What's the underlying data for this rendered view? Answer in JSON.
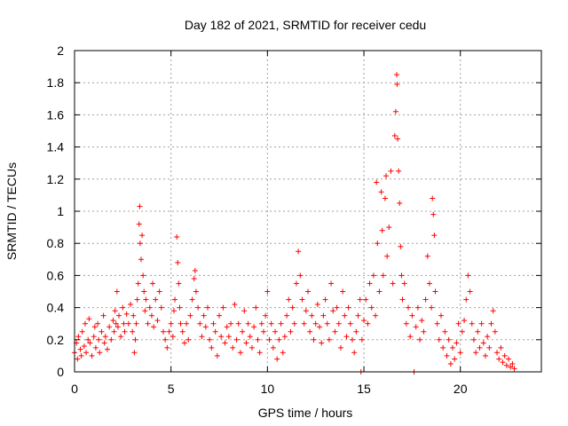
{
  "chart_data": {
    "type": "scatter",
    "title": "Day 182 of 2021, SRMTID for receiver cedu",
    "xlabel": "GPS time / hours",
    "ylabel": "SRMTID / TECUs",
    "xlim": [
      0,
      24.2
    ],
    "ylim": [
      0,
      2
    ],
    "xticks": [
      0,
      5,
      10,
      15,
      20
    ],
    "xtick_labels": [
      "0",
      "5",
      "10",
      "15",
      "20"
    ],
    "yticks": [
      0,
      0.2,
      0.4,
      0.6,
      0.8,
      1,
      1.2,
      1.4,
      1.6,
      1.8,
      2
    ],
    "ytick_labels": [
      "0",
      "0.2",
      "0.4",
      "0.6",
      "0.8",
      "1",
      "1.2",
      "1.4",
      "1.6",
      "1.8",
      "2"
    ],
    "grid": true,
    "marker": "plus",
    "color": "#ff0000",
    "series": [
      {
        "name": "SRMTID",
        "points": [
          [
            0.0,
            0.12
          ],
          [
            0.1,
            0.18
          ],
          [
            0.15,
            0.08
          ],
          [
            0.2,
            0.22
          ],
          [
            0.3,
            0.14
          ],
          [
            0.35,
            0.1
          ],
          [
            0.4,
            0.25
          ],
          [
            0.5,
            0.16
          ],
          [
            0.55,
            0.3
          ],
          [
            0.6,
            0.12
          ],
          [
            0.7,
            0.2
          ],
          [
            0.75,
            0.33
          ],
          [
            0.8,
            0.18
          ],
          [
            0.9,
            0.1
          ],
          [
            1.0,
            0.22
          ],
          [
            1.05,
            0.28
          ],
          [
            1.1,
            0.15
          ],
          [
            1.2,
            0.3
          ],
          [
            1.25,
            0.2
          ],
          [
            1.3,
            0.12
          ],
          [
            1.4,
            0.25
          ],
          [
            1.5,
            0.35
          ],
          [
            1.55,
            0.18
          ],
          [
            1.6,
            0.22
          ],
          [
            1.7,
            0.14
          ],
          [
            1.8,
            0.28
          ],
          [
            1.9,
            0.2
          ],
          [
            2.0,
            0.32
          ],
          [
            2.05,
            0.25
          ],
          [
            2.1,
            0.38
          ],
          [
            2.15,
            0.3
          ],
          [
            2.2,
            0.5
          ],
          [
            2.25,
            0.28
          ],
          [
            2.3,
            0.35
          ],
          [
            2.4,
            0.22
          ],
          [
            2.5,
            0.4
          ],
          [
            2.55,
            0.3
          ],
          [
            2.6,
            0.25
          ],
          [
            2.7,
            0.36
          ],
          [
            2.8,
            0.3
          ],
          [
            2.9,
            0.42
          ],
          [
            3.0,
            0.25
          ],
          [
            3.05,
            0.35
          ],
          [
            3.1,
            0.12
          ],
          [
            3.15,
            0.2
          ],
          [
            3.2,
            0.3
          ],
          [
            3.25,
            0.45
          ],
          [
            3.3,
            0.55
          ],
          [
            3.35,
            0.92
          ],
          [
            3.38,
            1.03
          ],
          [
            3.4,
            0.8
          ],
          [
            3.45,
            0.7
          ],
          [
            3.5,
            0.85
          ],
          [
            3.55,
            0.6
          ],
          [
            3.6,
            0.5
          ],
          [
            3.65,
            0.38
          ],
          [
            3.7,
            0.45
          ],
          [
            3.8,
            0.3
          ],
          [
            3.9,
            0.4
          ],
          [
            4.0,
            0.35
          ],
          [
            4.05,
            0.55
          ],
          [
            4.1,
            0.28
          ],
          [
            4.2,
            0.45
          ],
          [
            4.3,
            0.32
          ],
          [
            4.4,
            0.5
          ],
          [
            4.5,
            0.4
          ],
          [
            4.6,
            0.25
          ],
          [
            4.7,
            0.2
          ],
          [
            4.8,
            0.15
          ],
          [
            4.9,
            0.25
          ],
          [
            5.0,
            0.3
          ],
          [
            5.1,
            0.22
          ],
          [
            5.15,
            0.38
          ],
          [
            5.2,
            0.45
          ],
          [
            5.3,
            0.84
          ],
          [
            5.35,
            0.68
          ],
          [
            5.4,
            0.55
          ],
          [
            5.45,
            0.4
          ],
          [
            5.5,
            0.3
          ],
          [
            5.6,
            0.25
          ],
          [
            5.7,
            0.18
          ],
          [
            5.8,
            0.3
          ],
          [
            5.9,
            0.2
          ],
          [
            6.0,
            0.35
          ],
          [
            6.1,
            0.45
          ],
          [
            6.2,
            0.58
          ],
          [
            6.25,
            0.63
          ],
          [
            6.3,
            0.5
          ],
          [
            6.4,
            0.4
          ],
          [
            6.5,
            0.3
          ],
          [
            6.6,
            0.22
          ],
          [
            6.7,
            0.35
          ],
          [
            6.8,
            0.28
          ],
          [
            6.9,
            0.4
          ],
          [
            7.0,
            0.2
          ],
          [
            7.1,
            0.15
          ],
          [
            7.2,
            0.3
          ],
          [
            7.3,
            0.25
          ],
          [
            7.4,
            0.1
          ],
          [
            7.5,
            0.35
          ],
          [
            7.6,
            0.22
          ],
          [
            7.7,
            0.4
          ],
          [
            7.8,
            0.18
          ],
          [
            7.9,
            0.28
          ],
          [
            8.0,
            0.22
          ],
          [
            8.1,
            0.3
          ],
          [
            8.2,
            0.15
          ],
          [
            8.3,
            0.42
          ],
          [
            8.4,
            0.2
          ],
          [
            8.5,
            0.3
          ],
          [
            8.6,
            0.12
          ],
          [
            8.7,
            0.25
          ],
          [
            8.8,
            0.38
          ],
          [
            8.9,
            0.18
          ],
          [
            9.0,
            0.3
          ],
          [
            9.1,
            0.22
          ],
          [
            9.2,
            0.15
          ],
          [
            9.3,
            0.28
          ],
          [
            9.4,
            0.4
          ],
          [
            9.5,
            0.2
          ],
          [
            9.6,
            0.12
          ],
          [
            9.7,
            0.3
          ],
          [
            9.8,
            0.25
          ],
          [
            9.9,
            0.35
          ],
          [
            10.0,
            0.5
          ],
          [
            10.1,
            0.2
          ],
          [
            10.2,
            0.3
          ],
          [
            10.3,
            0.15
          ],
          [
            10.4,
            0.25
          ],
          [
            10.5,
            0.08
          ],
          [
            10.6,
            0.2
          ],
          [
            10.7,
            0.3
          ],
          [
            10.8,
            0.12
          ],
          [
            10.9,
            0.22
          ],
          [
            11.0,
            0.35
          ],
          [
            11.1,
            0.45
          ],
          [
            11.2,
            0.25
          ],
          [
            11.3,
            0.4
          ],
          [
            11.4,
            0.3
          ],
          [
            11.5,
            0.55
          ],
          [
            11.6,
            0.75
          ],
          [
            11.7,
            0.6
          ],
          [
            11.8,
            0.45
          ],
          [
            11.9,
            0.3
          ],
          [
            12.0,
            0.38
          ],
          [
            12.1,
            0.5
          ],
          [
            12.2,
            0.25
          ],
          [
            12.3,
            0.35
          ],
          [
            12.4,
            0.2
          ],
          [
            12.5,
            0.3
          ],
          [
            12.6,
            0.42
          ],
          [
            12.7,
            0.28
          ],
          [
            12.8,
            0.18
          ],
          [
            12.9,
            0.35
          ],
          [
            13.0,
            0.45
          ],
          [
            13.1,
            0.3
          ],
          [
            13.2,
            0.2
          ],
          [
            13.3,
            0.55
          ],
          [
            13.4,
            0.38
          ],
          [
            13.5,
            0.25
          ],
          [
            13.6,
            0.4
          ],
          [
            13.7,
            0.3
          ],
          [
            13.8,
            0.15
          ],
          [
            13.9,
            0.5
          ],
          [
            14.0,
            0.35
          ],
          [
            14.1,
            0.22
          ],
          [
            14.2,
            0.4
          ],
          [
            14.3,
            0.3
          ],
          [
            14.4,
            0.2
          ],
          [
            14.5,
            0.12
          ],
          [
            14.6,
            0.25
          ],
          [
            14.7,
            0.35
          ],
          [
            14.8,
            0.45
          ],
          [
            14.85,
            0.0
          ],
          [
            14.9,
            0.2
          ],
          [
            15.0,
            0.32
          ],
          [
            15.1,
            0.45
          ],
          [
            15.2,
            0.3
          ],
          [
            15.3,
            0.55
          ],
          [
            15.4,
            0.4
          ],
          [
            15.5,
            0.6
          ],
          [
            15.6,
            0.35
          ],
          [
            15.65,
            1.18
          ],
          [
            15.7,
            0.8
          ],
          [
            15.8,
            0.5
          ],
          [
            15.9,
            1.12
          ],
          [
            15.95,
            0.88
          ],
          [
            16.0,
            0.6
          ],
          [
            16.1,
            1.08
          ],
          [
            16.15,
            1.22
          ],
          [
            16.2,
            0.72
          ],
          [
            16.3,
            0.9
          ],
          [
            16.4,
            1.25
          ],
          [
            16.5,
            0.55
          ],
          [
            16.6,
            1.47
          ],
          [
            16.65,
            1.62
          ],
          [
            16.7,
            1.85
          ],
          [
            16.72,
            1.79
          ],
          [
            16.75,
            1.45
          ],
          [
            16.8,
            1.25
          ],
          [
            16.85,
            1.05
          ],
          [
            16.9,
            0.78
          ],
          [
            16.95,
            0.6
          ],
          [
            17.0,
            0.45
          ],
          [
            17.1,
            0.55
          ],
          [
            17.2,
            0.3
          ],
          [
            17.3,
            0.4
          ],
          [
            17.4,
            0.22
          ],
          [
            17.5,
            0.35
          ],
          [
            17.6,
            0.0
          ],
          [
            17.7,
            0.28
          ],
          [
            17.8,
            0.4
          ],
          [
            17.9,
            0.2
          ],
          [
            18.0,
            0.32
          ],
          [
            18.1,
            0.25
          ],
          [
            18.2,
            0.45
          ],
          [
            18.3,
            0.72
          ],
          [
            18.4,
            0.55
          ],
          [
            18.5,
            0.4
          ],
          [
            18.55,
            1.08
          ],
          [
            18.6,
            0.98
          ],
          [
            18.65,
            0.85
          ],
          [
            18.7,
            0.5
          ],
          [
            18.8,
            0.3
          ],
          [
            18.9,
            0.2
          ],
          [
            19.0,
            0.35
          ],
          [
            19.1,
            0.15
          ],
          [
            19.2,
            0.25
          ],
          [
            19.3,
            0.1
          ],
          [
            19.4,
            0.2
          ],
          [
            19.5,
            0.05
          ],
          [
            19.6,
            0.15
          ],
          [
            19.7,
            0.08
          ],
          [
            19.8,
            0.18
          ],
          [
            19.9,
            0.3
          ],
          [
            20.0,
            0.12
          ],
          [
            20.1,
            0.25
          ],
          [
            20.2,
            0.32
          ],
          [
            20.3,
            0.45
          ],
          [
            20.4,
            0.6
          ],
          [
            20.5,
            0.5
          ],
          [
            20.6,
            0.3
          ],
          [
            20.7,
            0.2
          ],
          [
            20.8,
            0.12
          ],
          [
            20.9,
            0.25
          ],
          [
            21.0,
            0.15
          ],
          [
            21.1,
            0.3
          ],
          [
            21.2,
            0.18
          ],
          [
            21.3,
            0.1
          ],
          [
            21.4,
            0.22
          ],
          [
            21.5,
            0.15
          ],
          [
            21.6,
            0.3
          ],
          [
            21.7,
            0.38
          ],
          [
            21.8,
            0.25
          ],
          [
            21.9,
            0.12
          ],
          [
            22.0,
            0.08
          ],
          [
            22.1,
            0.15
          ],
          [
            22.2,
            0.06
          ],
          [
            22.3,
            0.1
          ],
          [
            22.4,
            0.04
          ],
          [
            22.5,
            0.08
          ],
          [
            22.6,
            0.03
          ],
          [
            22.7,
            0.05
          ],
          [
            22.8,
            0.02
          ]
        ]
      }
    ]
  }
}
